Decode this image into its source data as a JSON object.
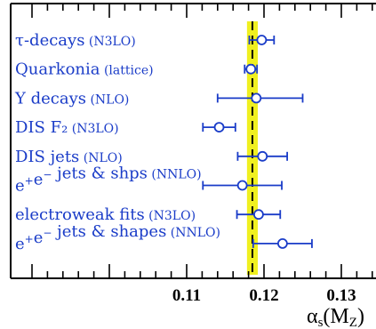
{
  "chart_data": {
    "type": "scatter",
    "orientation": "horizontal-error-bars",
    "xlabel": "αs(MZ)",
    "xlim": [
      0.09,
      0.135
    ],
    "xticks": [
      "0.11",
      "0.12",
      "0.13"
    ],
    "world_average": {
      "value": 0.1185,
      "band": [
        0.1178,
        0.1192
      ]
    },
    "colors": {
      "markers": "#1a3cc8",
      "band": "#f0f020",
      "axis": "#000000",
      "average_line": "#000000"
    },
    "categories": [
      {
        "main": "τ-decays",
        "qual": "(N3LO)",
        "value": 0.1197,
        "err": [
          0.0016,
          0.0016
        ]
      },
      {
        "main": "Quarkonia",
        "qual": "(lattice)",
        "value": 0.1183,
        "err": [
          0.0008,
          0.0008
        ]
      },
      {
        "main": "Υ decays",
        "qual": "(NLO)",
        "value": 0.119,
        "err": [
          0.005,
          0.006
        ]
      },
      {
        "main": "DIS  F₂",
        "qual": "(N3LO)",
        "value": 0.1142,
        "err": [
          0.0021,
          0.0021
        ]
      },
      {
        "main": "DIS  jets",
        "qual": "(NLO)",
        "value": 0.1198,
        "err": [
          0.0032,
          0.0032
        ]
      },
      {
        "main": "e⁺e⁻ jets & shps",
        "qual": "(NNLO)",
        "value": 0.1172,
        "err": [
          0.0051,
          0.0051
        ]
      },
      {
        "main": "electroweak fits",
        "qual": "(N3LO)",
        "value": 0.1193,
        "err": [
          0.0028,
          0.0028
        ]
      },
      {
        "main": "e⁺e⁻ jets & shapes",
        "qual": "(NNLO)",
        "value": 0.1224,
        "err": [
          0.0038,
          0.0038
        ]
      }
    ]
  }
}
